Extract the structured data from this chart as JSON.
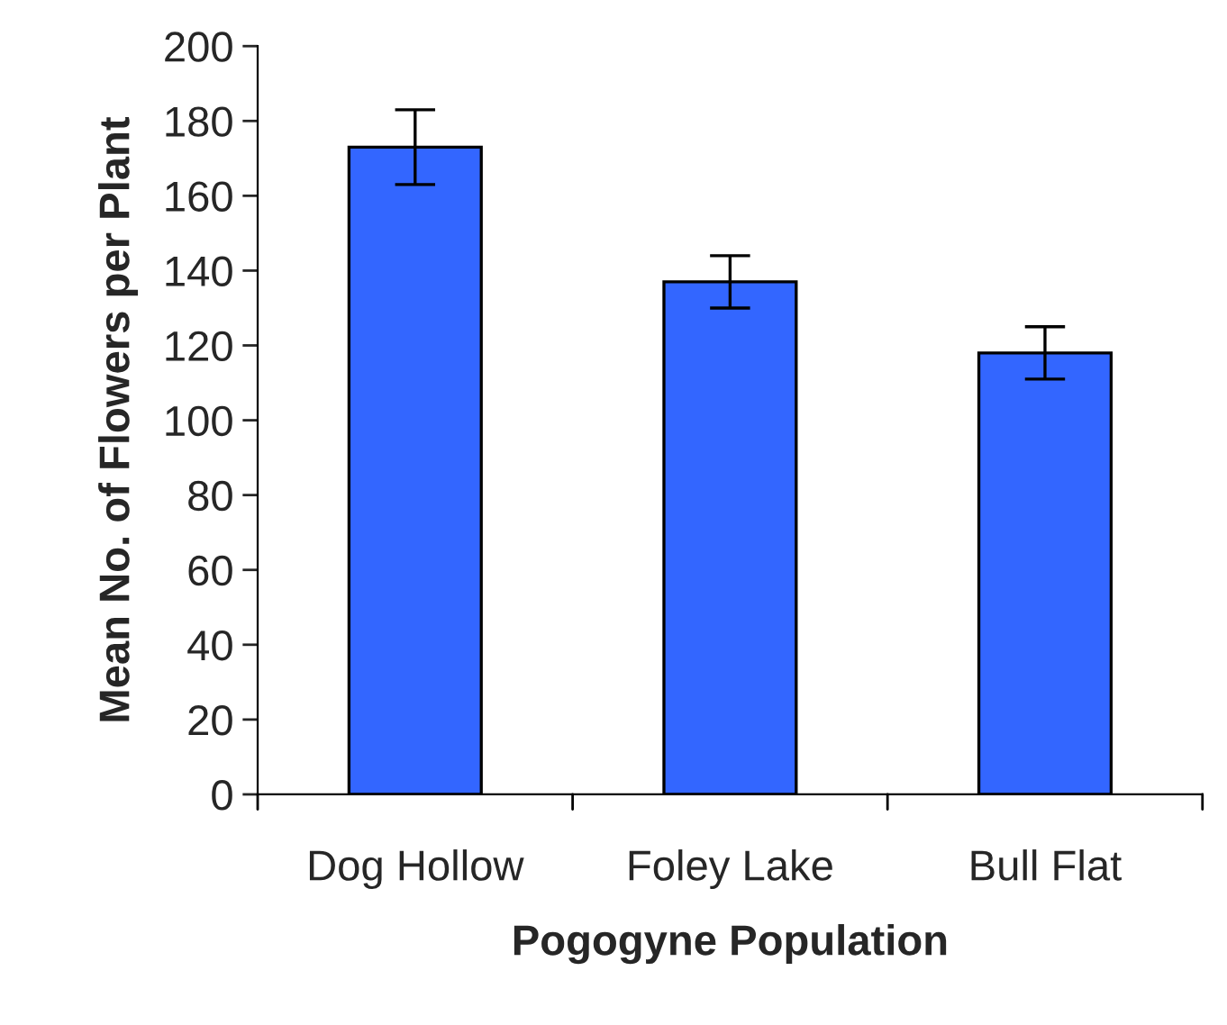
{
  "chart_data": {
    "type": "bar",
    "xlabel": "Pogogyne Population",
    "ylabel": "Mean No. of Flowers per Plant",
    "categories": [
      "Dog Hollow",
      "Foley Lake",
      "Bull Flat"
    ],
    "series": [
      {
        "color": "#3366ff",
        "values": [
          173,
          137,
          118
        ],
        "errors": [
          10,
          7,
          7
        ]
      }
    ],
    "ylim": [
      0,
      200
    ],
    "yticks": [
      0,
      20,
      40,
      60,
      80,
      100,
      120,
      140,
      160,
      180,
      200
    ],
    "grid": false,
    "legend": false
  }
}
